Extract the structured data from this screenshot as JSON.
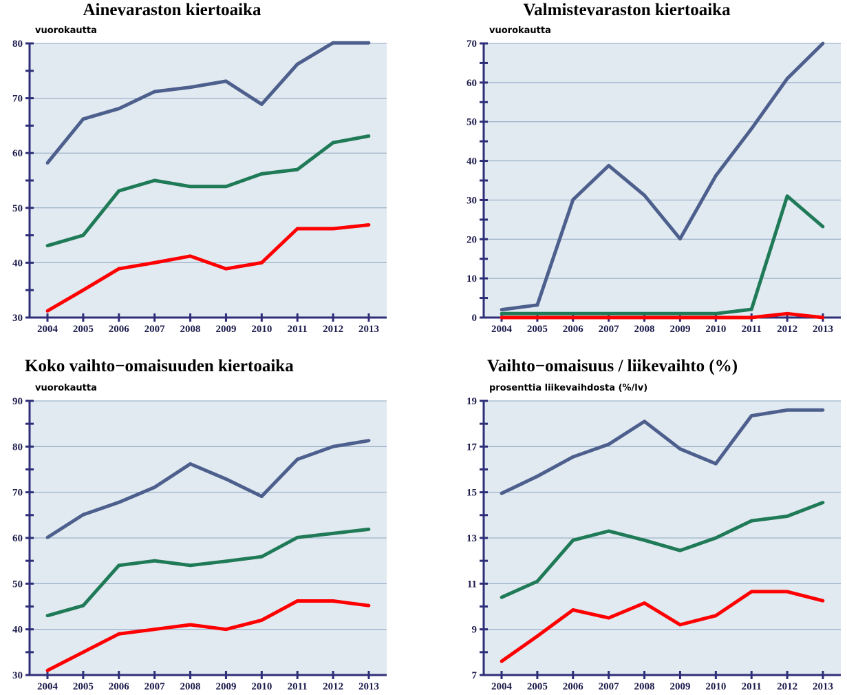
{
  "colors": {
    "series_blue": "#4d5f8c",
    "series_green": "#1f7a57",
    "series_red": "#ff0000",
    "plot_bg": "#e1e9f1",
    "axis": "#2e2e78",
    "grid": "#8aa6c0"
  },
  "chart_data": [
    {
      "type": "line",
      "title": "Ainevaraston kiertoaika",
      "ylabel": "vuorokautta",
      "categories": [
        "2004",
        "2005",
        "2006",
        "2007",
        "2008",
        "2009",
        "2010",
        "2011",
        "2012",
        "2013"
      ],
      "ylim": [
        30,
        80
      ],
      "yticks": [
        30,
        40,
        50,
        60,
        70,
        80
      ],
      "grid": true,
      "series": [
        {
          "color": "#4d5f8c",
          "values": [
            58.2,
            66.2,
            68.1,
            71.2,
            72.0,
            73.1,
            68.9,
            76.2,
            80.1,
            80.1
          ]
        },
        {
          "color": "#1f7a57",
          "values": [
            43.1,
            45.0,
            53.1,
            55.0,
            53.9,
            53.9,
            56.2,
            57.0,
            61.9,
            63.1
          ]
        },
        {
          "color": "#ff0000",
          "values": [
            31.2,
            35.0,
            38.9,
            40.0,
            41.2,
            38.9,
            40.0,
            46.2,
            46.2,
            46.9
          ]
        }
      ]
    },
    {
      "type": "line",
      "title": "Valmistevaraston kiertoaika",
      "ylabel": "vuorokautta",
      "categories": [
        "2004",
        "2005",
        "2006",
        "2007",
        "2008",
        "2009",
        "2010",
        "2011",
        "2012",
        "2013"
      ],
      "ylim": [
        0,
        70
      ],
      "yticks": [
        0,
        10,
        20,
        30,
        40,
        50,
        60,
        70
      ],
      "grid": true,
      "series": [
        {
          "color": "#4d5f8c",
          "values": [
            2.0,
            3.2,
            30.1,
            38.8,
            31.2,
            20.1,
            36.2,
            48.2,
            61.0,
            70.0
          ]
        },
        {
          "color": "#1f7a57",
          "values": [
            1.0,
            1.0,
            1.0,
            1.0,
            1.0,
            1.0,
            1.0,
            2.1,
            31.0,
            23.2
          ]
        },
        {
          "color": "#ff0000",
          "values": [
            0.0,
            0.0,
            0.0,
            0.0,
            0.0,
            0.0,
            0.0,
            0.0,
            1.0,
            0.0
          ]
        }
      ]
    },
    {
      "type": "line",
      "title": "Koko vaihto−omaisuuden kiertoaika",
      "ylabel": "vuorokautta",
      "categories": [
        "2004",
        "2005",
        "2006",
        "2007",
        "2008",
        "2009",
        "2010",
        "2011",
        "2012",
        "2013"
      ],
      "ylim": [
        30,
        90
      ],
      "yticks": [
        30,
        40,
        50,
        60,
        70,
        80,
        90
      ],
      "grid": true,
      "series": [
        {
          "color": "#4d5f8c",
          "values": [
            60.1,
            65.1,
            67.8,
            71.1,
            76.2,
            72.9,
            69.1,
            77.2,
            80.0,
            81.3
          ]
        },
        {
          "color": "#1f7a57",
          "values": [
            43.0,
            45.2,
            54.0,
            55.0,
            54.0,
            54.9,
            55.9,
            60.1,
            61.0,
            61.9
          ]
        },
        {
          "color": "#ff0000",
          "values": [
            31.0,
            35.0,
            39.0,
            40.0,
            41.0,
            40.0,
            42.0,
            46.2,
            46.2,
            45.2
          ]
        }
      ]
    },
    {
      "type": "line",
      "title": "Vaihto−omaisuus / liikevaihto (%)",
      "ylabel": "prosenttia liikevaihdosta (%/lv)",
      "categories": [
        "2004",
        "2005",
        "2006",
        "2007",
        "2008",
        "2009",
        "2010",
        "2011",
        "2012",
        "2013"
      ],
      "ylim": [
        7,
        19
      ],
      "yticks": [
        7,
        9,
        11,
        13,
        15,
        17,
        19
      ],
      "grid": true,
      "series": [
        {
          "color": "#4d5f8c",
          "values": [
            14.95,
            15.7,
            16.55,
            17.1,
            18.1,
            16.9,
            16.25,
            18.35,
            18.6,
            18.6
          ]
        },
        {
          "color": "#1f7a57",
          "values": [
            10.4,
            11.1,
            12.9,
            13.3,
            12.9,
            12.45,
            13.0,
            13.75,
            13.95,
            14.55
          ]
        },
        {
          "color": "#ff0000",
          "values": [
            7.6,
            8.7,
            9.85,
            9.5,
            10.15,
            9.2,
            9.6,
            10.65,
            10.65,
            10.25
          ]
        }
      ]
    }
  ]
}
